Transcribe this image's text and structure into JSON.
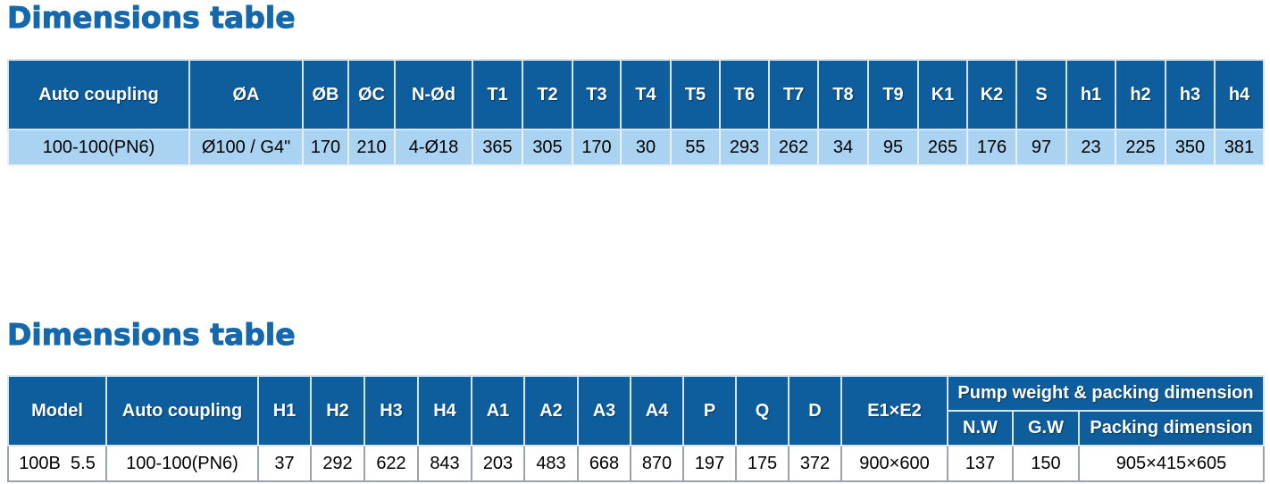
{
  "sections": [
    {
      "title": "Dimensions table",
      "table": {
        "header": [
          "Auto coupling",
          "ØA",
          "ØB",
          "ØC",
          "N-Ød",
          "T1",
          "T2",
          "T3",
          "T4",
          "T5",
          "T6",
          "T7",
          "T8",
          "T9",
          "K1",
          "K2",
          "S",
          "h1",
          "h2",
          "h3",
          "h4"
        ],
        "rows": [
          [
            "100-100(PN6)",
            "Ø100 / G4\"",
            170,
            210,
            "4-Ø18",
            365,
            305,
            170,
            30,
            55,
            293,
            262,
            34,
            95,
            265,
            176,
            97,
            23,
            225,
            350,
            381
          ]
        ]
      }
    },
    {
      "title": "Dimensions table",
      "table": {
        "header": [
          "Model",
          "Auto coupling",
          "H1",
          "H2",
          "H3",
          "H4",
          "A1",
          "A2",
          "A3",
          "A4",
          "P",
          "Q",
          "D",
          "E1×E2"
        ],
        "group_header": "Pump weight & packing dimension",
        "sub_header": [
          "N.W",
          "G.W",
          "Packing dimension"
        ],
        "rows": [
          [
            "100B  5.5",
            "100-100(PN6)",
            37,
            292,
            622,
            843,
            203,
            483,
            668,
            870,
            197,
            175,
            372,
            "900×600",
            137,
            150,
            "905×415×605"
          ]
        ]
      }
    }
  ]
}
